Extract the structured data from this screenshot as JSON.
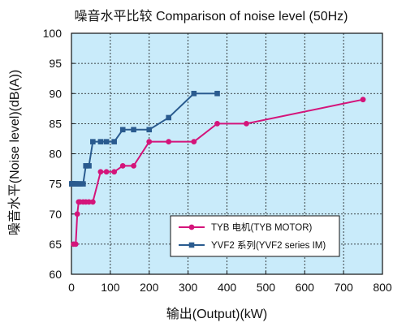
{
  "chart_data": {
    "type": "line",
    "title": "噪音水平比较 Comparison of noise level (50Hz)",
    "xlabel": "输出(Output)(kW)",
    "ylabel": "噪音水平(Noise level)(dB(A))",
    "xlim": [
      0,
      800
    ],
    "ylim": [
      60,
      100
    ],
    "xticks": [
      0,
      100,
      200,
      300,
      400,
      500,
      600,
      700,
      800
    ],
    "yticks": [
      60,
      65,
      70,
      75,
      80,
      85,
      90,
      95,
      100
    ],
    "grid": true,
    "legend_position": "bottom-right",
    "series": [
      {
        "name": "TYB 电机(TYB MOTOR)",
        "color": "#d4147a",
        "marker": "circle",
        "x": [
          5.5,
          11,
          15,
          18.5,
          22,
          30,
          37,
          45,
          55,
          75,
          90,
          110,
          132,
          160,
          200,
          250,
          315,
          375,
          450,
          750
        ],
        "y": [
          65,
          65,
          70,
          72,
          72,
          72,
          72,
          72,
          72,
          77,
          77,
          77,
          78,
          78,
          82,
          82,
          82,
          85,
          85,
          89
        ]
      },
      {
        "name": "YVF2 系列(YVF2 series IM)",
        "color": "#2a5b8f",
        "marker": "square",
        "x": [
          0.75,
          1.1,
          1.5,
          2.2,
          3,
          4,
          5.5,
          7.5,
          11,
          15,
          18.5,
          22,
          30,
          37,
          45,
          55,
          75,
          90,
          110,
          132,
          160,
          200,
          250,
          315,
          375
        ],
        "y": [
          75,
          75,
          75,
          75,
          75,
          75,
          75,
          75,
          75,
          75,
          75,
          75,
          75,
          78,
          78,
          82,
          82,
          82,
          82,
          84,
          84,
          84,
          86,
          90,
          90
        ]
      }
    ]
  },
  "colors": {
    "plot_background": "#c9ebfa",
    "grid": "#111111",
    "frame": "#111111"
  }
}
